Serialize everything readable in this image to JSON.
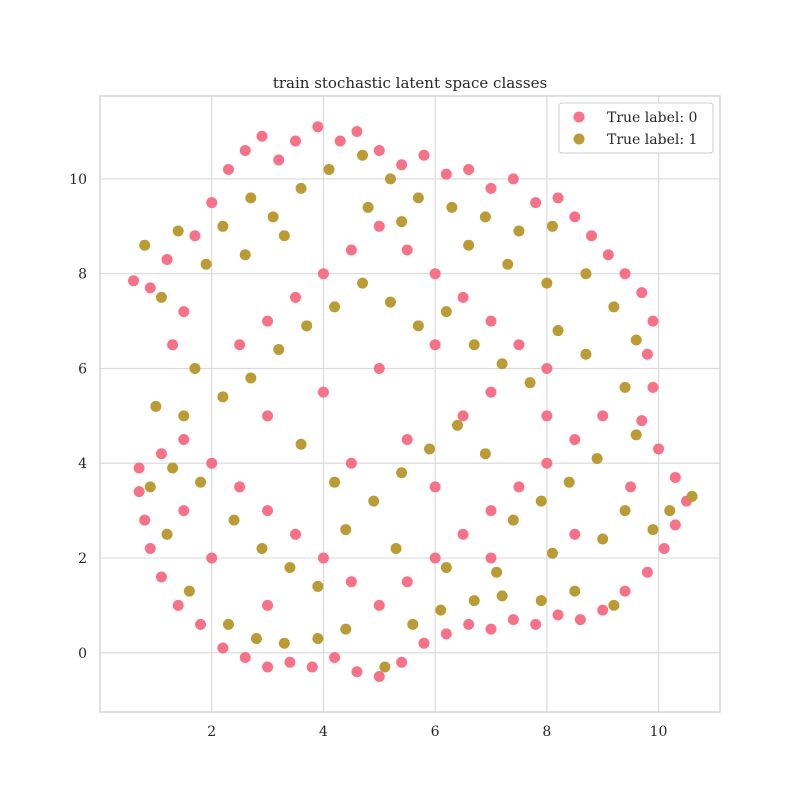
{
  "chart_data": {
    "type": "scatter",
    "title": "train stochastic latent space classes",
    "xlabel": "",
    "ylabel": "",
    "xlim": [
      0.0,
      11.1
    ],
    "ylim": [
      -1.25,
      11.75
    ],
    "xticks": [
      2,
      4,
      6,
      8,
      10
    ],
    "yticks": [
      0,
      2,
      4,
      6,
      8,
      10
    ],
    "grid": true,
    "legend_position": "top-right",
    "series": [
      {
        "name": "True label: 0",
        "color": "#f77189",
        "points": [
          [
            0.6,
            7.85
          ],
          [
            0.9,
            7.7
          ],
          [
            1.2,
            8.3
          ],
          [
            1.5,
            7.2
          ],
          [
            1.3,
            6.5
          ],
          [
            1.7,
            8.8
          ],
          [
            2.0,
            9.5
          ],
          [
            2.3,
            10.2
          ],
          [
            2.6,
            10.6
          ],
          [
            2.9,
            10.9
          ],
          [
            3.2,
            10.4
          ],
          [
            3.5,
            10.8
          ],
          [
            3.9,
            11.1
          ],
          [
            4.3,
            10.8
          ],
          [
            4.6,
            11.0
          ],
          [
            5.0,
            10.6
          ],
          [
            5.4,
            10.3
          ],
          [
            5.8,
            10.5
          ],
          [
            6.2,
            10.1
          ],
          [
            6.6,
            10.2
          ],
          [
            7.0,
            9.8
          ],
          [
            7.4,
            10.0
          ],
          [
            7.8,
            9.5
          ],
          [
            8.2,
            9.6
          ],
          [
            8.5,
            9.2
          ],
          [
            8.8,
            8.8
          ],
          [
            9.1,
            8.4
          ],
          [
            9.4,
            8.0
          ],
          [
            9.7,
            7.6
          ],
          [
            9.9,
            7.0
          ],
          [
            9.8,
            6.3
          ],
          [
            9.9,
            5.6
          ],
          [
            9.7,
            4.9
          ],
          [
            10.0,
            4.3
          ],
          [
            10.3,
            3.7
          ],
          [
            10.5,
            3.2
          ],
          [
            10.3,
            2.7
          ],
          [
            10.1,
            2.2
          ],
          [
            9.8,
            1.7
          ],
          [
            9.4,
            1.3
          ],
          [
            9.0,
            0.9
          ],
          [
            8.6,
            0.7
          ],
          [
            8.2,
            0.8
          ],
          [
            7.8,
            0.6
          ],
          [
            7.4,
            0.7
          ],
          [
            7.0,
            0.5
          ],
          [
            6.6,
            0.6
          ],
          [
            6.2,
            0.4
          ],
          [
            5.8,
            0.2
          ],
          [
            5.4,
            -0.2
          ],
          [
            5.0,
            -0.5
          ],
          [
            4.6,
            -0.4
          ],
          [
            4.2,
            -0.1
          ],
          [
            3.8,
            -0.3
          ],
          [
            3.4,
            -0.2
          ],
          [
            3.0,
            -0.3
          ],
          [
            2.6,
            -0.1
          ],
          [
            2.2,
            0.1
          ],
          [
            1.8,
            0.6
          ],
          [
            1.4,
            1.0
          ],
          [
            1.1,
            1.6
          ],
          [
            0.9,
            2.2
          ],
          [
            0.8,
            2.8
          ],
          [
            0.7,
            3.4
          ],
          [
            0.7,
            3.9
          ],
          [
            1.1,
            4.2
          ],
          [
            1.5,
            4.5
          ],
          [
            2.0,
            4.0
          ],
          [
            2.5,
            3.5
          ],
          [
            3.0,
            3.0
          ],
          [
            3.5,
            2.5
          ],
          [
            4.0,
            2.0
          ],
          [
            4.5,
            1.5
          ],
          [
            5.0,
            1.0
          ],
          [
            5.5,
            1.5
          ],
          [
            6.0,
            2.0
          ],
          [
            6.5,
            2.5
          ],
          [
            7.0,
            3.0
          ],
          [
            7.5,
            3.5
          ],
          [
            8.0,
            4.0
          ],
          [
            8.5,
            4.5
          ],
          [
            9.0,
            5.0
          ],
          [
            2.5,
            6.5
          ],
          [
            3.0,
            7.0
          ],
          [
            3.5,
            7.5
          ],
          [
            4.0,
            8.0
          ],
          [
            4.5,
            8.5
          ],
          [
            5.0,
            9.0
          ],
          [
            5.5,
            8.5
          ],
          [
            6.0,
            8.0
          ],
          [
            6.5,
            7.5
          ],
          [
            7.0,
            7.0
          ],
          [
            7.5,
            6.5
          ],
          [
            8.0,
            6.0
          ],
          [
            3.0,
            5.0
          ],
          [
            4.0,
            5.5
          ],
          [
            5.0,
            6.0
          ],
          [
            6.0,
            6.5
          ],
          [
            7.0,
            5.5
          ],
          [
            8.0,
            5.0
          ],
          [
            2.0,
            2.0
          ],
          [
            3.0,
            1.0
          ],
          [
            6.0,
            3.5
          ],
          [
            7.0,
            2.0
          ],
          [
            8.5,
            2.5
          ],
          [
            9.5,
            3.5
          ],
          [
            1.5,
            3.0
          ],
          [
            4.5,
            4.0
          ],
          [
            5.5,
            4.5
          ],
          [
            6.5,
            5.0
          ]
        ]
      },
      {
        "name": "True label: 1",
        "color": "#ba9b35",
        "points": [
          [
            0.8,
            8.6
          ],
          [
            1.1,
            7.5
          ],
          [
            1.4,
            8.9
          ],
          [
            1.9,
            8.2
          ],
          [
            2.2,
            9.0
          ],
          [
            2.7,
            9.6
          ],
          [
            3.1,
            9.2
          ],
          [
            3.6,
            9.8
          ],
          [
            4.1,
            10.2
          ],
          [
            4.7,
            10.5
          ],
          [
            5.2,
            10.0
          ],
          [
            5.7,
            9.6
          ],
          [
            6.3,
            9.4
          ],
          [
            6.9,
            9.2
          ],
          [
            7.5,
            8.9
          ],
          [
            8.1,
            9.0
          ],
          [
            8.7,
            8.0
          ],
          [
            9.2,
            7.3
          ],
          [
            9.6,
            6.6
          ],
          [
            9.4,
            5.6
          ],
          [
            9.6,
            4.6
          ],
          [
            10.2,
            3.0
          ],
          [
            10.6,
            3.3
          ],
          [
            9.9,
            2.6
          ],
          [
            9.2,
            1.0
          ],
          [
            8.5,
            1.3
          ],
          [
            7.9,
            1.1
          ],
          [
            7.2,
            1.2
          ],
          [
            6.7,
            1.1
          ],
          [
            6.1,
            0.9
          ],
          [
            5.6,
            0.6
          ],
          [
            5.1,
            -0.3
          ],
          [
            4.4,
            0.5
          ],
          [
            3.9,
            0.3
          ],
          [
            3.3,
            0.2
          ],
          [
            2.8,
            0.3
          ],
          [
            2.3,
            0.6
          ],
          [
            1.6,
            1.3
          ],
          [
            1.2,
            2.5
          ],
          [
            0.9,
            3.5
          ],
          [
            1.3,
            3.9
          ],
          [
            1.8,
            3.6
          ],
          [
            2.4,
            2.8
          ],
          [
            2.9,
            2.2
          ],
          [
            3.4,
            1.8
          ],
          [
            3.9,
            1.4
          ],
          [
            4.4,
            2.6
          ],
          [
            4.9,
            3.2
          ],
          [
            5.4,
            3.8
          ],
          [
            5.9,
            4.3
          ],
          [
            6.4,
            4.8
          ],
          [
            6.9,
            4.2
          ],
          [
            7.4,
            2.8
          ],
          [
            7.9,
            3.2
          ],
          [
            8.4,
            3.6
          ],
          [
            8.9,
            4.1
          ],
          [
            1.7,
            6.0
          ],
          [
            2.2,
            5.4
          ],
          [
            2.7,
            5.8
          ],
          [
            3.2,
            6.4
          ],
          [
            3.7,
            6.9
          ],
          [
            4.2,
            7.3
          ],
          [
            4.7,
            7.8
          ],
          [
            5.2,
            7.4
          ],
          [
            5.7,
            6.9
          ],
          [
            6.2,
            7.2
          ],
          [
            6.7,
            6.5
          ],
          [
            7.2,
            6.1
          ],
          [
            7.7,
            5.7
          ],
          [
            8.2,
            6.8
          ],
          [
            8.7,
            6.3
          ],
          [
            2.6,
            8.4
          ],
          [
            3.3,
            8.8
          ],
          [
            4.8,
            9.4
          ],
          [
            5.4,
            9.1
          ],
          [
            6.6,
            8.6
          ],
          [
            7.3,
            8.2
          ],
          [
            8.0,
            7.8
          ],
          [
            3.6,
            4.4
          ],
          [
            4.2,
            3.6
          ],
          [
            5.3,
            2.2
          ],
          [
            6.2,
            1.8
          ],
          [
            7.1,
            1.7
          ],
          [
            8.1,
            2.1
          ],
          [
            9.0,
            2.4
          ],
          [
            9.4,
            3.0
          ],
          [
            1.0,
            5.2
          ],
          [
            1.5,
            5.0
          ]
        ]
      }
    ]
  }
}
